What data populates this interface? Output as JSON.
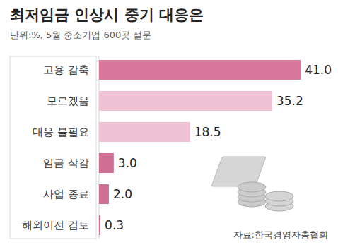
{
  "chart_data": {
    "type": "bar",
    "title": "최저임금 인상시 중기 대응은",
    "subtitle": "단위:%, 5월 중소기업 600곳 설문",
    "annotations": [
      "자료:한국경영자총협회"
    ],
    "categories": [
      "고용 감축",
      "모르겠음",
      "대응 불필요",
      "임금 삭감",
      "사업 종료",
      "해외이전 검토"
    ],
    "values": [
      41.0,
      35.2,
      18.5,
      3.0,
      2.0,
      0.3
    ],
    "value_labels": [
      "41.0",
      "35.2",
      "18.5",
      "3.0",
      "2.0",
      "0.3"
    ],
    "colors": [
      "#d9779d",
      "#efc3d4",
      "#efc3d4",
      "#cf6f94",
      "#cf6f94",
      "#cf6f94"
    ],
    "orientation": "horizontal",
    "data_labels": true,
    "tick_labels": "y",
    "xlim": [
      0,
      46
    ]
  }
}
